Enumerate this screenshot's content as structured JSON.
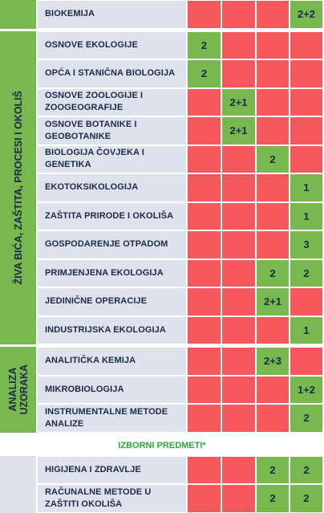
{
  "colors": {
    "green": "#77b94f",
    "red": "#f6585b",
    "gray": "#dde2ec",
    "subject": "#dde2ec"
  },
  "sections": [
    {
      "label": null,
      "fill": "green",
      "rows": [
        {
          "subject": "BIOKEMIJA",
          "marks": [
            "red",
            "red",
            "red",
            "green"
          ],
          "labels": [
            null,
            null,
            null,
            "2+2"
          ]
        }
      ]
    },
    {
      "label": "ŽIVA BIĆA, ZAŠTITA, PROCESI I OKOLIŠ",
      "fill": "green",
      "rows": [
        {
          "subject": "OSNOVE EKOLOGIJE",
          "marks": [
            "green",
            "red",
            "red",
            "red"
          ],
          "labels": [
            "2",
            null,
            null,
            null
          ]
        },
        {
          "subject": "OPĆA I STANIČNA BIOLOGIJA",
          "marks": [
            "green",
            "red",
            "red",
            "red"
          ],
          "labels": [
            "2",
            null,
            null,
            null
          ]
        },
        {
          "subject": "OSNOVE ZOOLOGIJE I ZOOGEOGRAFIJE",
          "marks": [
            "red",
            "green",
            "red",
            "red"
          ],
          "labels": [
            null,
            "2+1",
            null,
            null
          ]
        },
        {
          "subject": "OSNOVE BOTANIKE I GEOBOTANIKE",
          "marks": [
            "red",
            "green",
            "red",
            "red"
          ],
          "labels": [
            null,
            "2+1",
            null,
            null
          ]
        },
        {
          "subject": "BIOLOGIJA ČOVJEKA I GENETIKA",
          "marks": [
            "red",
            "red",
            "green",
            "red"
          ],
          "labels": [
            null,
            null,
            "2",
            null
          ]
        },
        {
          "subject": "EKOTOKSIKOLOGIJA",
          "marks": [
            "red",
            "red",
            "red",
            "green"
          ],
          "labels": [
            null,
            null,
            null,
            "1"
          ]
        },
        {
          "subject": "ZAŠTITA PRIRODE I OKOLIŠA",
          "marks": [
            "red",
            "red",
            "red",
            "green"
          ],
          "labels": [
            null,
            null,
            null,
            "1"
          ]
        },
        {
          "subject": "GOSPODARENJE OTPADOM",
          "marks": [
            "red",
            "red",
            "red",
            "green"
          ],
          "labels": [
            null,
            null,
            null,
            "3"
          ]
        },
        {
          "subject": "PRIMJENJENA EKOLOGIJA",
          "marks": [
            "red",
            "red",
            "green",
            "green"
          ],
          "labels": [
            null,
            null,
            "2",
            "2"
          ]
        },
        {
          "subject": "JEDINIČNE OPERACIJE",
          "marks": [
            "red",
            "red",
            "green",
            "red"
          ],
          "labels": [
            null,
            null,
            "2+1",
            null
          ]
        },
        {
          "subject": "INDUSTRIJSKA EKOLOGIJA",
          "marks": [
            "red",
            "red",
            "red",
            "green"
          ],
          "labels": [
            null,
            null,
            null,
            "1"
          ]
        }
      ]
    },
    {
      "label": "ANALIZA UZORAKA",
      "fill": "green",
      "rows": [
        {
          "subject": "ANALITIČKA KEMIJA",
          "marks": [
            "red",
            "red",
            "green",
            "red"
          ],
          "labels": [
            null,
            null,
            "2+3",
            null
          ]
        },
        {
          "subject": "MIKROBIOLOGIJA",
          "marks": [
            "red",
            "red",
            "red",
            "green"
          ],
          "labels": [
            null,
            null,
            null,
            "1+2"
          ]
        },
        {
          "subject": "INSTRUMENTALNE METODE ANALIZE",
          "marks": [
            "red",
            "red",
            "red",
            "green"
          ],
          "labels": [
            null,
            null,
            null,
            "2"
          ]
        }
      ]
    },
    {
      "heading": "IZBORNI PREDMETI*"
    },
    {
      "label": null,
      "fill": "gray",
      "rows": [
        {
          "subject": "HIGIJENA I ZDRAVLJE",
          "marks": [
            "red",
            "red",
            "green",
            "green"
          ],
          "labels": [
            null,
            null,
            "2",
            "2"
          ]
        },
        {
          "subject": "RAČUNALNE METODE U ZAŠTITI OKOLIŠA",
          "marks": [
            "red",
            "red",
            "green",
            "green"
          ],
          "labels": [
            null,
            null,
            "2",
            "2"
          ]
        }
      ]
    }
  ]
}
